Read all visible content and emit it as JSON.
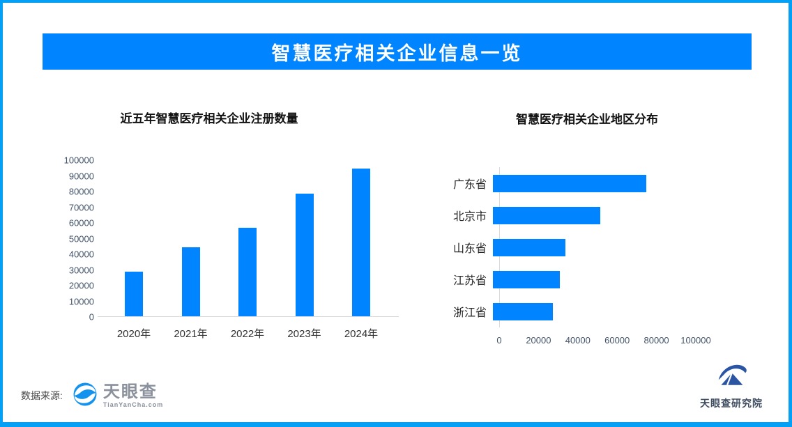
{
  "header": {
    "title": "智慧医疗相关企业信息一览"
  },
  "colors": {
    "accent_blue": "#0084ff",
    "border_blue": "#04a0f6",
    "axis_line": "#d9d9d9",
    "tick_text": "#44546a"
  },
  "chart_data": [
    {
      "type": "bar",
      "orientation": "vertical",
      "title": "近五年智慧医疗相关企业注册数量",
      "categories": [
        "2020年",
        "2021年",
        "2022年",
        "2023年",
        "2024年"
      ],
      "values": [
        28500,
        44000,
        56500,
        78000,
        94000
      ],
      "xlabel": "",
      "ylabel": "",
      "ylim": [
        0,
        100000
      ],
      "ytick_step": 10000,
      "grid": false,
      "legend": false,
      "bar_color": "#0084ff"
    },
    {
      "type": "bar",
      "orientation": "horizontal",
      "title": "智慧医疗相关企业地区分布",
      "categories": [
        "广东省",
        "北京市",
        "山东省",
        "江苏省",
        "浙江省"
      ],
      "values": [
        78000,
        54500,
        37000,
        34000,
        30500
      ],
      "xlabel": "",
      "ylabel": "",
      "xlim": [
        0,
        100000
      ],
      "xtick_step": 20000,
      "grid": false,
      "legend": false,
      "bar_color": "#0084ff"
    }
  ],
  "footer": {
    "source_label": "数据来源:",
    "brand": {
      "name": "天眼查",
      "domain": "TianYanCha.com"
    },
    "research": {
      "name": "天眼查研究院"
    }
  }
}
